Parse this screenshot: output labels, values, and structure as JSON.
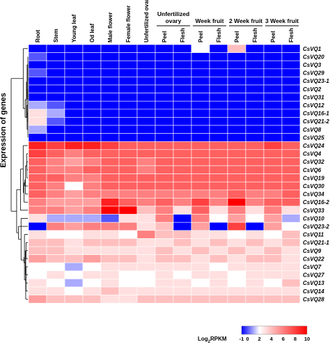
{
  "chart_data": {
    "type": "heatmap",
    "ylabel": "Expression of genes",
    "columns": [
      "Root",
      "Stem",
      "Young leaf",
      "Od leaf",
      "Male flower",
      "Female flower",
      "Unfertilized ovary",
      "Peel",
      "Flesh",
      "Peel",
      "Flesh",
      "Peel",
      "Flesh",
      "Peel",
      "Flesh"
    ],
    "column_groups": [
      {
        "label": "Unfertilized\novary",
        "start": 7,
        "end": 8
      },
      {
        "label": "Week fruit",
        "start": 9,
        "end": 10
      },
      {
        "label": "2 Week fruit",
        "start": 11,
        "end": 12
      },
      {
        "label": "3 Week fruit",
        "start": 13,
        "end": 14
      }
    ],
    "rows": [
      "CsVQ1",
      "CsVQ20",
      "CsVQ3",
      "CsVQ29",
      "CsVQ23-1",
      "CsVQ2",
      "CsVQ31",
      "CsVQ12",
      "CsVQ16-1",
      "CsVQ21-2",
      "CsVQ8",
      "CsVQ25",
      "CsVQ24",
      "CsVQ4",
      "CsVQ32",
      "CsVQ6",
      "CsVQ19",
      "CsVQ30",
      "CsVQ34",
      "CsVQ16-2",
      "CsVQ33",
      "CsVQ10",
      "CsVQ23-2",
      "CsVQ11",
      "CsVQ21-1",
      "CsVQ9",
      "CsVQ22",
      "CsVQ7",
      "CsVQ27",
      "CsVQ13",
      "CsVQ14",
      "CsVQ28"
    ],
    "values": [
      [
        -1,
        -1,
        -1,
        -1,
        -1,
        -1,
        -1,
        -1,
        -1,
        2,
        -1,
        4,
        -1,
        -1,
        -1
      ],
      [
        0,
        -1,
        -1,
        -1,
        -1,
        -1,
        -1,
        -1,
        -1,
        -1,
        -1,
        -1,
        -1,
        -1,
        -1
      ],
      [
        -1,
        -1,
        -1,
        -1,
        -1,
        -1,
        -1,
        -1,
        -1,
        -1,
        -1,
        -1,
        -1,
        -1,
        -1
      ],
      [
        0,
        -1,
        -1,
        -1,
        -1,
        -1,
        -1,
        -1,
        -1,
        -1,
        -1,
        -1,
        -1,
        -1,
        -1
      ],
      [
        -1,
        -1,
        -1,
        -1,
        -1,
        -1,
        -1,
        -1,
        -1,
        -1,
        -1,
        -1,
        -1,
        -1,
        -1
      ],
      [
        -1,
        -1,
        -1,
        -1,
        -1,
        -1,
        -1,
        -1,
        -1,
        -1,
        -1,
        -1,
        -1,
        -1,
        -1
      ],
      [
        -1,
        -1,
        -1,
        -1,
        -1,
        -1,
        -1,
        -1,
        -1,
        -1,
        -1,
        -1,
        -1,
        -1,
        -1
      ],
      [
        1,
        0,
        -1,
        -1,
        -1,
        -1,
        -1,
        -1,
        -1,
        -1,
        -1,
        -1,
        -1,
        -1,
        -1
      ],
      [
        3,
        1,
        -1,
        -1,
        -1,
        -1,
        -1,
        -1,
        -1,
        -1,
        -1,
        -1,
        -1,
        -1,
        -1
      ],
      [
        3,
        0,
        -1,
        -1,
        -1,
        -1,
        -1,
        -1,
        -1,
        -1,
        -1,
        -1,
        -1,
        -1,
        -1
      ],
      [
        1,
        -1,
        -1,
        -1,
        -1,
        -1,
        -1,
        -1,
        -1,
        -1,
        -1,
        -1,
        -1,
        -1,
        -1
      ],
      [
        -1,
        -1,
        -1,
        -1,
        -1,
        -1,
        -1,
        -1,
        -1,
        -1,
        -1,
        -1,
        -1,
        -1,
        -1
      ],
      [
        9,
        8,
        9,
        9,
        8,
        7,
        7,
        7,
        7,
        7,
        7,
        7,
        7,
        8,
        7
      ],
      [
        8,
        7,
        6,
        7,
        7,
        7,
        7,
        7,
        7,
        7,
        7,
        7,
        7,
        7,
        7
      ],
      [
        7,
        6,
        5,
        6,
        7,
        7,
        6,
        7,
        7,
        7,
        7,
        7,
        7,
        7,
        7
      ],
      [
        7,
        6,
        6,
        7,
        7,
        7,
        6,
        7,
        7,
        7,
        7,
        7,
        7,
        7,
        7
      ],
      [
        7,
        7,
        6,
        6,
        7,
        7,
        7,
        7,
        7,
        7,
        7,
        7,
        7,
        7,
        7
      ],
      [
        7,
        6,
        2,
        6,
        7,
        7,
        7,
        7,
        7,
        7,
        7,
        7,
        7,
        7,
        7
      ],
      [
        7,
        6,
        5,
        6,
        6,
        6,
        6,
        6,
        6,
        6,
        6,
        7,
        6,
        6,
        7
      ],
      [
        6,
        5,
        5,
        5,
        9,
        7,
        6,
        7,
        6,
        8,
        6,
        10,
        6,
        7,
        7
      ],
      [
        6,
        6,
        5,
        6,
        10,
        10,
        4,
        6,
        3,
        7,
        3,
        6,
        3,
        6,
        3
      ],
      [
        3,
        1,
        1,
        1,
        0,
        3,
        3,
        6,
        -1,
        6,
        2,
        5,
        2,
        5,
        1
      ],
      [
        -1,
        6,
        5,
        6,
        6,
        6,
        3,
        4,
        -1,
        5,
        -1,
        8,
        -1,
        5,
        2
      ],
      [
        3,
        2,
        2,
        3,
        3,
        2,
        6,
        4,
        4,
        3,
        3,
        2,
        3,
        2,
        4
      ],
      [
        4,
        4,
        3,
        4,
        4,
        4,
        3,
        3,
        4,
        3,
        4,
        3,
        4,
        3,
        4
      ],
      [
        4,
        4,
        3,
        3,
        3,
        3,
        3,
        4,
        3,
        4,
        3,
        4,
        3,
        4,
        3
      ],
      [
        5,
        4,
        4,
        5,
        4,
        4,
        3,
        4,
        4,
        3,
        4,
        3,
        4,
        4,
        3
      ],
      [
        2,
        2,
        1,
        2,
        3,
        3,
        3,
        3,
        3,
        3,
        2,
        3,
        3,
        3,
        3
      ],
      [
        2,
        3,
        2,
        3,
        3,
        2,
        2,
        3,
        2,
        3,
        3,
        2,
        3,
        3,
        3
      ],
      [
        3,
        2,
        1,
        2,
        3,
        2,
        2,
        3,
        3,
        2,
        3,
        2,
        3,
        2,
        4
      ],
      [
        3,
        3,
        2,
        3,
        4,
        3,
        3,
        3,
        3,
        3,
        3,
        3,
        3,
        3,
        3
      ],
      [
        5,
        4,
        4,
        4,
        3,
        3,
        4,
        4,
        4,
        4,
        4,
        4,
        4,
        4,
        4
      ]
    ],
    "colorbar": {
      "label_main": "Log",
      "label_sub": "2",
      "label_tail": "RPKM",
      "ticks": [
        "-1",
        "0",
        "2",
        "4",
        "6",
        "8",
        "10"
      ],
      "min": -1,
      "max": 10,
      "colors": {
        "low": "#0000ff",
        "mid": "#ffffff",
        "high": "#ff0000"
      }
    }
  }
}
